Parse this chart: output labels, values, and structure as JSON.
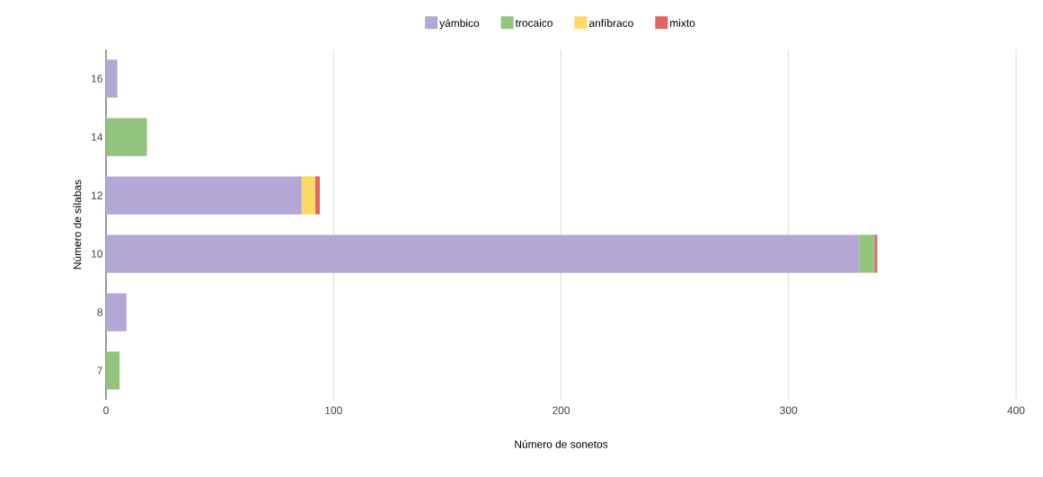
{
  "chart_data": {
    "type": "bar",
    "orientation": "horizontal",
    "stacked": true,
    "xlabel": "Número de sonetos",
    "ylabel": "Número de sílabas",
    "categories": [
      "16",
      "14",
      "12",
      "10",
      "8",
      "7"
    ],
    "series": [
      {
        "name": "yámbico",
        "color": "#b4a7d6",
        "values": [
          5,
          0,
          86,
          331,
          9,
          0
        ]
      },
      {
        "name": "trocaico",
        "color": "#93c47d",
        "values": [
          0,
          18,
          0,
          7,
          0,
          6
        ]
      },
      {
        "name": "anfíbraco",
        "color": "#ffd966",
        "values": [
          0,
          0,
          6,
          0,
          0,
          0
        ]
      },
      {
        "name": "mixto",
        "color": "#e06666",
        "values": [
          0,
          0,
          2,
          1,
          0,
          0
        ]
      }
    ],
    "xlim": [
      0,
      400
    ],
    "xticks": [
      0,
      100,
      200,
      300,
      400
    ],
    "grid": "x",
    "legend": "top"
  }
}
